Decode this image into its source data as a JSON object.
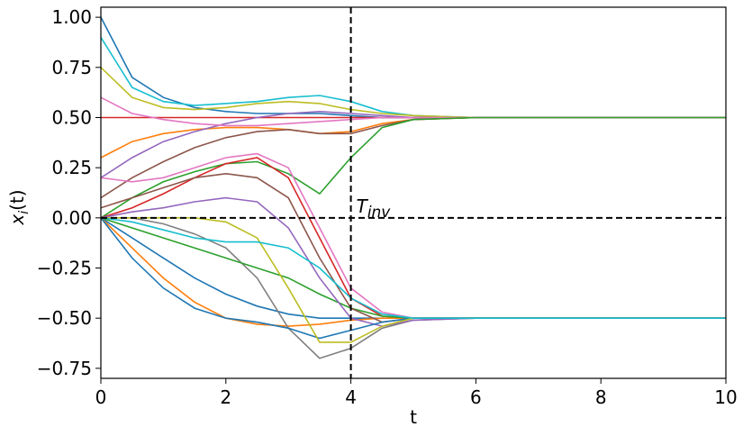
{
  "chart_data": {
    "type": "line",
    "x_label": "t",
    "y_label": {
      "base": "x",
      "sub": "i",
      "rest": "(t)"
    },
    "annotation": {
      "base": "T",
      "sub": "inv"
    },
    "vlines": [
      4
    ],
    "hlines": [
      0
    ],
    "xlim": [
      0,
      10
    ],
    "ylim": [
      -0.8,
      1.05
    ],
    "xticks": [
      0,
      2,
      4,
      6,
      8,
      10
    ],
    "yticks": [
      {
        "value": -0.75,
        "label": "−0.75"
      },
      {
        "value": -0.5,
        "label": "−0.50"
      },
      {
        "value": -0.25,
        "label": "−0.25"
      },
      {
        "value": 0,
        "label": "0.00"
      },
      {
        "value": 0.25,
        "label": "0.25"
      },
      {
        "value": 0.5,
        "label": "0.50"
      },
      {
        "value": 0.75,
        "label": "0.75"
      },
      {
        "value": 1,
        "label": "1.00"
      }
    ],
    "x": [
      0,
      0.5,
      1,
      1.5,
      2,
      2.5,
      3,
      3.5,
      4,
      4.5,
      5,
      6,
      7,
      8,
      10
    ],
    "series": [
      {
        "color": "#1f77b4",
        "values": [
          1.0,
          0.7,
          0.6,
          0.55,
          0.53,
          0.52,
          0.52,
          0.52,
          0.51,
          0.5,
          0.5,
          0.5,
          0.5,
          0.5,
          0.5
        ]
      },
      {
        "color": "#17becf",
        "values": [
          0.9,
          0.65,
          0.58,
          0.56,
          0.57,
          0.58,
          0.6,
          0.61,
          0.58,
          0.53,
          0.51,
          0.5,
          0.5,
          0.5,
          0.5
        ]
      },
      {
        "color": "#ff7f0e",
        "values": [
          0.3,
          0.38,
          0.42,
          0.44,
          0.45,
          0.45,
          0.44,
          0.42,
          0.43,
          0.47,
          0.49,
          0.5,
          0.5,
          0.5,
          0.5
        ]
      },
      {
        "color": "#d62728",
        "values": [
          0.5,
          0.5,
          0.5,
          0.5,
          0.5,
          0.5,
          0.5,
          0.5,
          0.5,
          0.5,
          0.5,
          0.5,
          0.5,
          0.5,
          0.5
        ]
      },
      {
        "color": "#9467bd",
        "values": [
          0.2,
          0.3,
          0.38,
          0.43,
          0.47,
          0.5,
          0.52,
          0.53,
          0.52,
          0.51,
          0.5,
          0.5,
          0.5,
          0.5,
          0.5
        ]
      },
      {
        "color": "#bcbd22",
        "values": [
          0.75,
          0.6,
          0.55,
          0.54,
          0.55,
          0.57,
          0.58,
          0.57,
          0.54,
          0.52,
          0.51,
          0.5,
          0.5,
          0.5,
          0.5
        ]
      },
      {
        "color": "#8c564b",
        "values": [
          0.1,
          0.2,
          0.28,
          0.35,
          0.4,
          0.43,
          0.44,
          0.42,
          0.42,
          0.46,
          0.49,
          0.5,
          0.5,
          0.5,
          0.5
        ]
      },
      {
        "color": "#e377c2",
        "values": [
          0.6,
          0.52,
          0.49,
          0.47,
          0.46,
          0.46,
          0.47,
          0.48,
          0.49,
          0.5,
          0.5,
          0.5,
          0.5,
          0.5,
          0.5
        ]
      },
      {
        "color": "#2ca02c",
        "values": [
          0.0,
          0.1,
          0.18,
          0.23,
          0.27,
          0.28,
          0.22,
          0.12,
          0.3,
          0.45,
          0.49,
          0.5,
          0.5,
          0.5,
          0.5
        ]
      },
      {
        "color": "#1f77b4",
        "values": [
          0.0,
          -0.1,
          -0.2,
          -0.3,
          -0.38,
          -0.44,
          -0.48,
          -0.5,
          -0.5,
          -0.5,
          -0.5,
          -0.5,
          -0.5,
          -0.5,
          -0.5
        ]
      },
      {
        "color": "#ff7f0e",
        "values": [
          0.0,
          -0.15,
          -0.3,
          -0.42,
          -0.5,
          -0.53,
          -0.54,
          -0.53,
          -0.51,
          -0.5,
          -0.5,
          -0.5,
          -0.5,
          -0.5,
          -0.5
        ]
      },
      {
        "color": "#d62728",
        "values": [
          0.0,
          0.05,
          0.12,
          0.2,
          0.27,
          0.3,
          0.2,
          -0.1,
          -0.4,
          -0.49,
          -0.5,
          -0.5,
          -0.5,
          -0.5,
          -0.5
        ]
      },
      {
        "color": "#e377c2",
        "values": [
          0.2,
          0.18,
          0.2,
          0.25,
          0.3,
          0.32,
          0.25,
          -0.05,
          -0.35,
          -0.47,
          -0.5,
          -0.5,
          -0.5,
          -0.5,
          -0.5
        ]
      },
      {
        "color": "#7f7f7f",
        "values": [
          0.0,
          0.0,
          -0.03,
          -0.08,
          -0.15,
          -0.3,
          -0.55,
          -0.7,
          -0.65,
          -0.55,
          -0.51,
          -0.5,
          -0.5,
          -0.5,
          -0.5
        ]
      },
      {
        "color": "#2ca02c",
        "values": [
          0.0,
          -0.05,
          -0.1,
          -0.15,
          -0.2,
          -0.25,
          -0.3,
          -0.38,
          -0.45,
          -0.49,
          -0.5,
          -0.5,
          -0.5,
          -0.5,
          -0.5
        ]
      },
      {
        "color": "#9467bd",
        "values": [
          0.0,
          0.03,
          0.05,
          0.08,
          0.1,
          0.08,
          -0.05,
          -0.3,
          -0.5,
          -0.54,
          -0.51,
          -0.5,
          -0.5,
          -0.5,
          -0.5
        ]
      },
      {
        "color": "#8c564b",
        "values": [
          0.05,
          0.1,
          0.15,
          0.2,
          0.22,
          0.2,
          0.1,
          -0.2,
          -0.45,
          -0.52,
          -0.5,
          -0.5,
          -0.5,
          -0.5,
          -0.5
        ]
      },
      {
        "color": "#1f77b4",
        "values": [
          0.0,
          -0.2,
          -0.35,
          -0.45,
          -0.5,
          -0.52,
          -0.55,
          -0.6,
          -0.56,
          -0.52,
          -0.5,
          -0.5,
          -0.5,
          -0.5,
          -0.5
        ]
      },
      {
        "color": "#bcbd22",
        "values": [
          0.0,
          0.0,
          0.0,
          0.0,
          -0.02,
          -0.1,
          -0.35,
          -0.62,
          -0.62,
          -0.54,
          -0.5,
          -0.5,
          -0.5,
          -0.5,
          -0.5
        ]
      },
      {
        "color": "#17becf",
        "values": [
          0.0,
          -0.02,
          -0.06,
          -0.1,
          -0.12,
          -0.12,
          -0.15,
          -0.25,
          -0.4,
          -0.48,
          -0.5,
          -0.5,
          -0.5,
          -0.5,
          -0.5
        ]
      }
    ]
  }
}
